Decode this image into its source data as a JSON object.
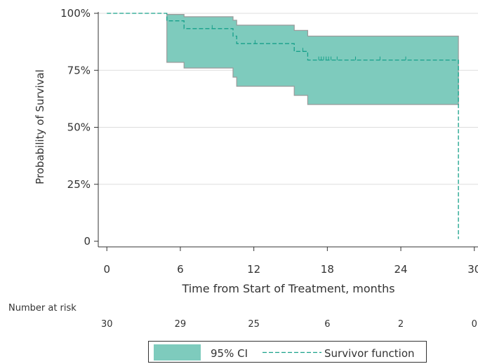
{
  "chart_data": {
    "type": "line",
    "subtype": "kaplan-meier survival curve with confidence band",
    "title": "",
    "xlabel": "Time from Start of Treatment, months",
    "ylabel": "Probability of Survival",
    "xlim": [
      -0.7,
      30.3
    ],
    "ylim": [
      0,
      100
    ],
    "x_ticks": [
      0,
      6,
      12,
      18,
      24,
      30
    ],
    "x_tick_labels": [
      "0",
      "6",
      "12",
      "18",
      "24",
      "30"
    ],
    "y_ticks": [
      0,
      25,
      50,
      75,
      100
    ],
    "y_tick_labels": [
      "0",
      "25%",
      "50%",
      "75%",
      "100%"
    ],
    "grid": "horizontal",
    "survivor_function": {
      "name": "Survivor function",
      "color": "#17a08a",
      "x": [
        0,
        4.9,
        4.9,
        6.3,
        6.3,
        10.3,
        10.3,
        10.6,
        10.6,
        15.3,
        15.3,
        16.4,
        16.4,
        28.7,
        28.7
      ],
      "y": [
        100,
        100,
        96.7,
        96.7,
        93.3,
        93.3,
        90,
        90,
        86.7,
        86.7,
        83.3,
        83.3,
        79.5,
        79.5,
        1
      ]
    },
    "censored_x": [
      8.6,
      12.1,
      16.0,
      17.3,
      17.5,
      17.7,
      17.9,
      18.1,
      18.3,
      18.8,
      20.3,
      22.3,
      24.4
    ],
    "ci_band": {
      "name": "95% CI",
      "fill_color": "#7ecbbd",
      "edge_color": "#9a9a9a",
      "x": [
        4.9,
        6.3,
        10.3,
        10.6,
        15.3,
        16.4,
        28.7
      ],
      "upper": [
        99.5,
        98.5,
        97,
        94.8,
        92.5,
        90,
        90
      ],
      "lower": [
        78.5,
        76,
        72,
        68,
        64,
        60,
        60
      ]
    },
    "number_at_risk": {
      "label": "Number at risk",
      "x": [
        0,
        6,
        12,
        18,
        24,
        30
      ],
      "values": [
        "30",
        "29",
        "25",
        "6",
        "2",
        "0"
      ]
    },
    "legend": {
      "placement": "bottom-center",
      "items": [
        {
          "label": "95% CI"
        },
        {
          "label": "Survivor function"
        }
      ]
    }
  }
}
